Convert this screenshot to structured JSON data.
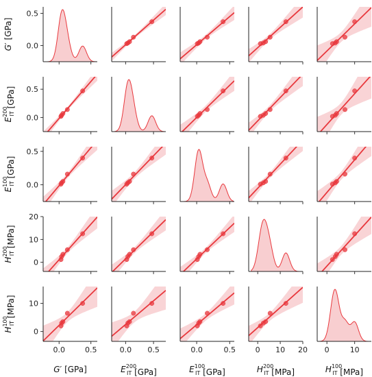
{
  "chart_data": {
    "type": "pairplot",
    "variables": [
      {
        "base": "G",
        "prime": "′",
        "sup": "",
        "unit": " [GPa]",
        "lim": [
          -0.25,
          0.6
        ],
        "ticks": [
          0.0,
          0.5
        ],
        "tick_labels": [
          "0.0",
          "0.5"
        ],
        "values": [
          0.03,
          0.04,
          0.06,
          0.13,
          0.37
        ]
      },
      {
        "base": "E",
        "prime": "",
        "sup": "200",
        "unit": " [GPa]",
        "lim": [
          -0.25,
          0.72
        ],
        "ticks": [
          0.0,
          0.5
        ],
        "tick_labels": [
          "0.0",
          "0.5"
        ],
        "values": [
          0.02,
          0.04,
          0.07,
          0.14,
          0.47
        ]
      },
      {
        "base": "E",
        "prime": "",
        "sup": "100",
        "unit": " [GPa]",
        "lim": [
          -0.25,
          0.57
        ],
        "ticks": [
          0.0,
          0.5
        ],
        "tick_labels": [
          "0.0",
          "0.5"
        ],
        "values": [
          0.01,
          0.03,
          0.05,
          0.16,
          0.4
        ]
      },
      {
        "base": "H",
        "prime": "",
        "sup": "200",
        "unit": " [MPa]",
        "lim": [
          -4,
          20
        ],
        "ticks": [
          0,
          10,
          20
        ],
        "tick_labels": [
          "0",
          "10",
          "20"
        ],
        "values": [
          1.2,
          2.5,
          3.5,
          5.5,
          12.5
        ]
      },
      {
        "base": "H",
        "prime": "",
        "sup": "100",
        "unit": " [MPa]",
        "lim": [
          -3.5,
          16
        ],
        "ticks": [
          0,
          10
        ],
        "tick_labels": [
          "0",
          "10"
        ],
        "values": [
          2.0,
          3.0,
          3.5,
          6.5,
          10.0
        ]
      }
    ],
    "diag_type": "kde",
    "offdiag_type": "scatter + linear regression with confidence band",
    "color": "#e8383d",
    "band_color": "#f7c6c8"
  }
}
